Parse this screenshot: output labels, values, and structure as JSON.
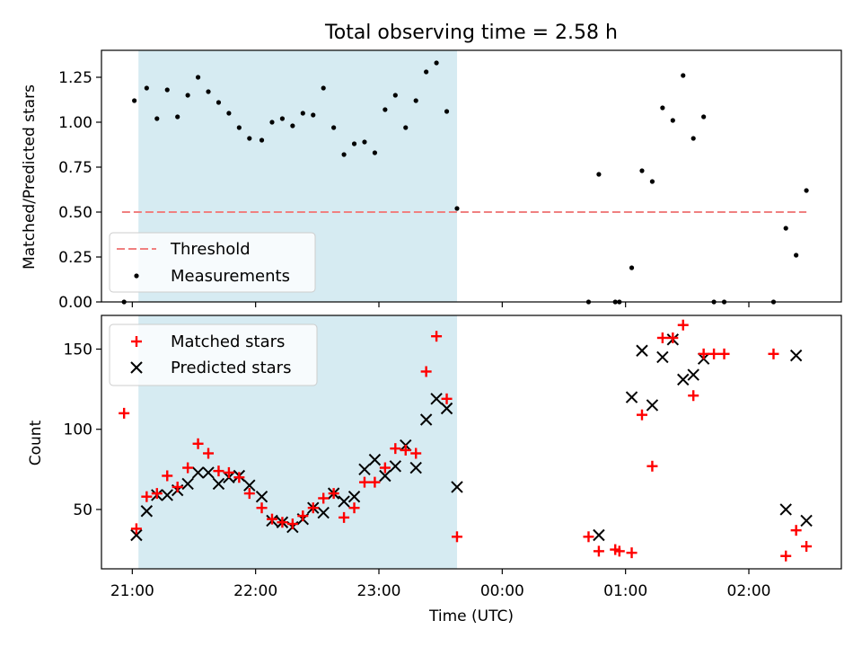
{
  "chart_data": [
    {
      "type": "scatter",
      "title": "Total observing time = 2.58 h",
      "xlabel": "",
      "ylabel": "Matched/Predicted stars",
      "xlim": [
        "20:45",
        "02:45"
      ],
      "ylim": [
        0,
        1.4
      ],
      "yticks": [
        0.0,
        0.25,
        0.5,
        0.75,
        1.0,
        1.25
      ],
      "ytick_labels": [
        "0.00",
        "0.25",
        "0.50",
        "0.75",
        "1.00",
        "1.25"
      ],
      "shaded_interval": [
        "21:03",
        "23:38"
      ],
      "threshold": {
        "name": "Threshold",
        "value": 0.5,
        "x_range": [
          "20:55",
          "02:28"
        ],
        "color": "#f08080",
        "style": "dashed"
      },
      "series": [
        {
          "name": "Measurements",
          "marker": "dot",
          "color": "#000000",
          "points": [
            [
              "20:56",
              0.0
            ],
            [
              "21:01",
              1.12
            ],
            [
              "21:07",
              1.19
            ],
            [
              "21:12",
              1.02
            ],
            [
              "21:17",
              1.18
            ],
            [
              "21:22",
              1.03
            ],
            [
              "21:27",
              1.15
            ],
            [
              "21:32",
              1.25
            ],
            [
              "21:37",
              1.17
            ],
            [
              "21:42",
              1.11
            ],
            [
              "21:47",
              1.05
            ],
            [
              "21:52",
              0.97
            ],
            [
              "21:57",
              0.91
            ],
            [
              "22:03",
              0.9
            ],
            [
              "22:08",
              1.0
            ],
            [
              "22:13",
              1.02
            ],
            [
              "22:18",
              0.98
            ],
            [
              "22:23",
              1.05
            ],
            [
              "22:28",
              1.04
            ],
            [
              "22:33",
              1.19
            ],
            [
              "22:38",
              0.97
            ],
            [
              "22:43",
              0.82
            ],
            [
              "22:48",
              0.88
            ],
            [
              "22:53",
              0.89
            ],
            [
              "22:58",
              0.83
            ],
            [
              "23:03",
              1.07
            ],
            [
              "23:08",
              1.15
            ],
            [
              "23:13",
              0.97
            ],
            [
              "23:18",
              1.12
            ],
            [
              "23:23",
              1.28
            ],
            [
              "23:28",
              1.33
            ],
            [
              "23:33",
              1.06
            ],
            [
              "23:38",
              0.52
            ],
            [
              "00:42",
              0.0
            ],
            [
              "00:47",
              0.71
            ],
            [
              "00:55",
              0.0
            ],
            [
              "00:57",
              0.0
            ],
            [
              "01:03",
              0.19
            ],
            [
              "01:08",
              0.73
            ],
            [
              "01:13",
              0.67
            ],
            [
              "01:18",
              1.08
            ],
            [
              "01:23",
              1.01
            ],
            [
              "01:28",
              1.26
            ],
            [
              "01:33",
              0.91
            ],
            [
              "01:38",
              1.03
            ],
            [
              "01:43",
              0.0
            ],
            [
              "01:48",
              0.0
            ],
            [
              "02:12",
              0.0
            ],
            [
              "02:18",
              0.41
            ],
            [
              "02:23",
              0.26
            ],
            [
              "02:28",
              0.62
            ]
          ]
        }
      ],
      "legend": {
        "placement": "lower-left",
        "entries": [
          "Threshold",
          "Measurements"
        ]
      }
    },
    {
      "type": "scatter",
      "title": "",
      "xlabel": "Time (UTC)",
      "ylabel": "Count",
      "xlim": [
        "20:45",
        "02:45"
      ],
      "ylim": [
        13,
        171
      ],
      "yticks": [
        50,
        100,
        150
      ],
      "xticks": [
        "21:00",
        "22:00",
        "23:00",
        "00:00",
        "01:00",
        "02:00"
      ],
      "shaded_interval": [
        "21:03",
        "23:38"
      ],
      "series": [
        {
          "name": "Matched stars",
          "marker": "plus",
          "color": "#ff0000",
          "points": [
            [
              "20:56",
              110
            ],
            [
              "21:02",
              38
            ],
            [
              "21:07",
              58
            ],
            [
              "21:12",
              60
            ],
            [
              "21:17",
              71
            ],
            [
              "21:22",
              64
            ],
            [
              "21:27",
              76
            ],
            [
              "21:32",
              91
            ],
            [
              "21:37",
              85
            ],
            [
              "21:42",
              74
            ],
            [
              "21:47",
              73
            ],
            [
              "21:52",
              70
            ],
            [
              "21:57",
              60
            ],
            [
              "22:03",
              51
            ],
            [
              "22:08",
              44
            ],
            [
              "22:13",
              42
            ],
            [
              "22:18",
              41
            ],
            [
              "22:23",
              46
            ],
            [
              "22:28",
              51
            ],
            [
              "22:33",
              57
            ],
            [
              "22:38",
              60
            ],
            [
              "22:43",
              45
            ],
            [
              "22:48",
              51
            ],
            [
              "22:53",
              67
            ],
            [
              "22:58",
              67
            ],
            [
              "23:03",
              76
            ],
            [
              "23:08",
              88
            ],
            [
              "23:13",
              87
            ],
            [
              "23:18",
              85
            ],
            [
              "23:23",
              136
            ],
            [
              "23:28",
              158
            ],
            [
              "23:33",
              119
            ],
            [
              "23:38",
              33
            ],
            [
              "00:42",
              33
            ],
            [
              "00:47",
              24
            ],
            [
              "00:55",
              25
            ],
            [
              "00:57",
              24
            ],
            [
              "01:03",
              23
            ],
            [
              "01:08",
              109
            ],
            [
              "01:13",
              77
            ],
            [
              "01:18",
              157
            ],
            [
              "01:23",
              157
            ],
            [
              "01:28",
              165
            ],
            [
              "01:33",
              121
            ],
            [
              "01:38",
              147
            ],
            [
              "01:43",
              147
            ],
            [
              "01:48",
              147
            ],
            [
              "02:12",
              147
            ],
            [
              "02:18",
              21
            ],
            [
              "02:23",
              37
            ],
            [
              "02:28",
              27
            ]
          ]
        },
        {
          "name": "Predicted stars",
          "marker": "x",
          "color": "#000000",
          "points": [
            [
              "21:02",
              34
            ],
            [
              "21:07",
              49
            ],
            [
              "21:12",
              59
            ],
            [
              "21:17",
              59
            ],
            [
              "21:22",
              62
            ],
            [
              "21:27",
              66
            ],
            [
              "21:32",
              73
            ],
            [
              "21:37",
              73
            ],
            [
              "21:42",
              66
            ],
            [
              "21:47",
              70
            ],
            [
              "21:52",
              71
            ],
            [
              "21:57",
              65
            ],
            [
              "22:03",
              58
            ],
            [
              "22:08",
              43
            ],
            [
              "22:13",
              42
            ],
            [
              "22:18",
              39
            ],
            [
              "22:23",
              44
            ],
            [
              "22:28",
              51
            ],
            [
              "22:33",
              48
            ],
            [
              "22:38",
              60
            ],
            [
              "22:43",
              55
            ],
            [
              "22:48",
              58
            ],
            [
              "22:53",
              75
            ],
            [
              "22:58",
              81
            ],
            [
              "23:03",
              71
            ],
            [
              "23:08",
              77
            ],
            [
              "23:13",
              90
            ],
            [
              "23:18",
              76
            ],
            [
              "23:23",
              106
            ],
            [
              "23:28",
              119
            ],
            [
              "23:33",
              113
            ],
            [
              "23:38",
              64
            ],
            [
              "00:47",
              34
            ],
            [
              "01:03",
              120
            ],
            [
              "01:08",
              149
            ],
            [
              "01:13",
              115
            ],
            [
              "01:18",
              145
            ],
            [
              "01:23",
              156
            ],
            [
              "01:28",
              131
            ],
            [
              "01:33",
              134
            ],
            [
              "01:38",
              144
            ],
            [
              "02:18",
              50
            ],
            [
              "02:23",
              146
            ],
            [
              "02:28",
              43
            ]
          ]
        }
      ],
      "legend": {
        "placement": "upper-left",
        "entries": [
          "Matched stars",
          "Predicted stars"
        ]
      }
    }
  ],
  "colors": {
    "shade": "#add8e6",
    "threshold": "#f08080",
    "matched": "#ff0000",
    "predicted": "#000000",
    "measurement": "#000000"
  }
}
